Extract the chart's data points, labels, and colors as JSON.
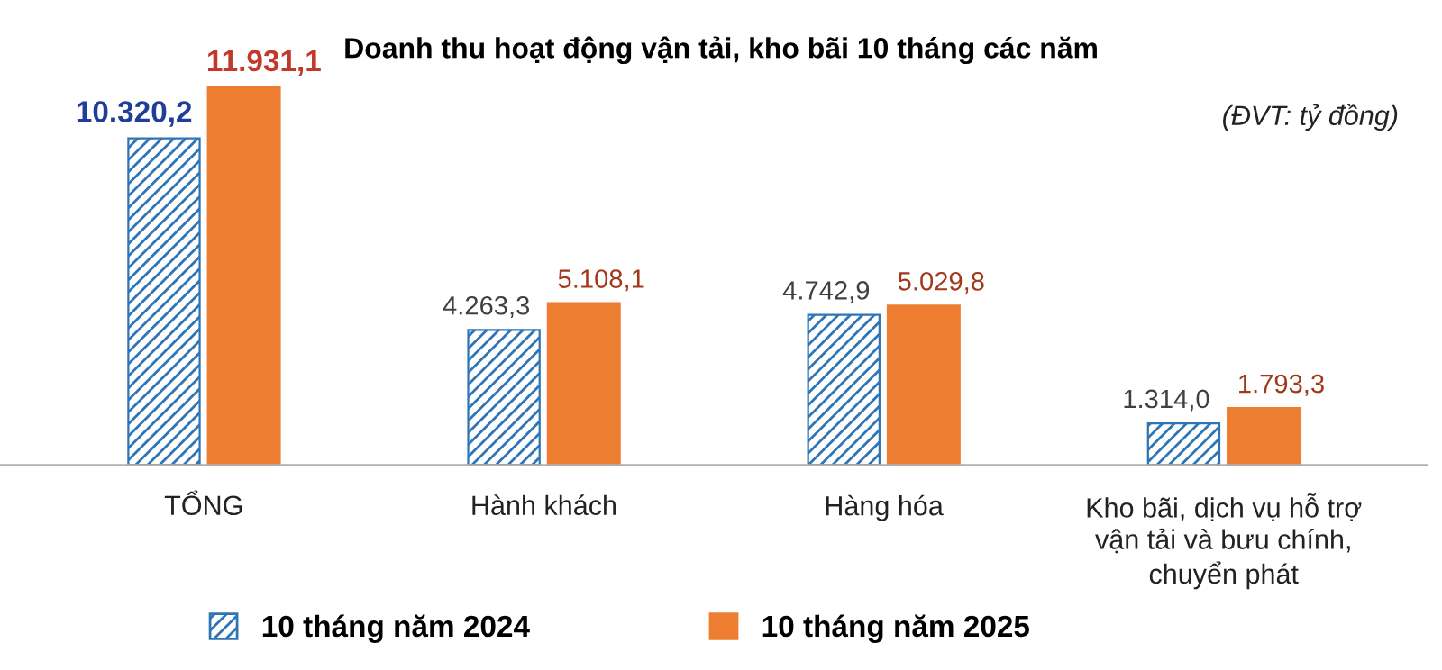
{
  "chart_data": {
    "type": "bar",
    "title": "Doanh thu hoạt động vận tải, kho bãi 10 tháng các năm",
    "annotations": [
      "(ĐVT: tỷ đồng)"
    ],
    "categories": [
      "TỔNG",
      "Hành khách",
      "Hàng hóa",
      "Kho bãi, dịch vụ hỗ trợ\nvận tải và bưu chính,\nchuyển phát"
    ],
    "series": [
      {
        "name": "10 tháng năm 2024",
        "color": "#2e75b6",
        "values": [
          10320.2,
          4263.3,
          4742.9,
          1314.0
        ],
        "value_labels": [
          "10.320,2",
          "4.263,3",
          "4.742,9",
          "1.314,0"
        ]
      },
      {
        "name": "10 tháng năm 2025",
        "color": "#ed7d31",
        "values": [
          11931.1,
          5108.1,
          5029.8,
          1793.3
        ],
        "value_labels": [
          "11.931,1",
          "5.108,1",
          "5.029,8",
          "1.793,3"
        ]
      }
    ],
    "legend": "bottom",
    "grid": false
  }
}
